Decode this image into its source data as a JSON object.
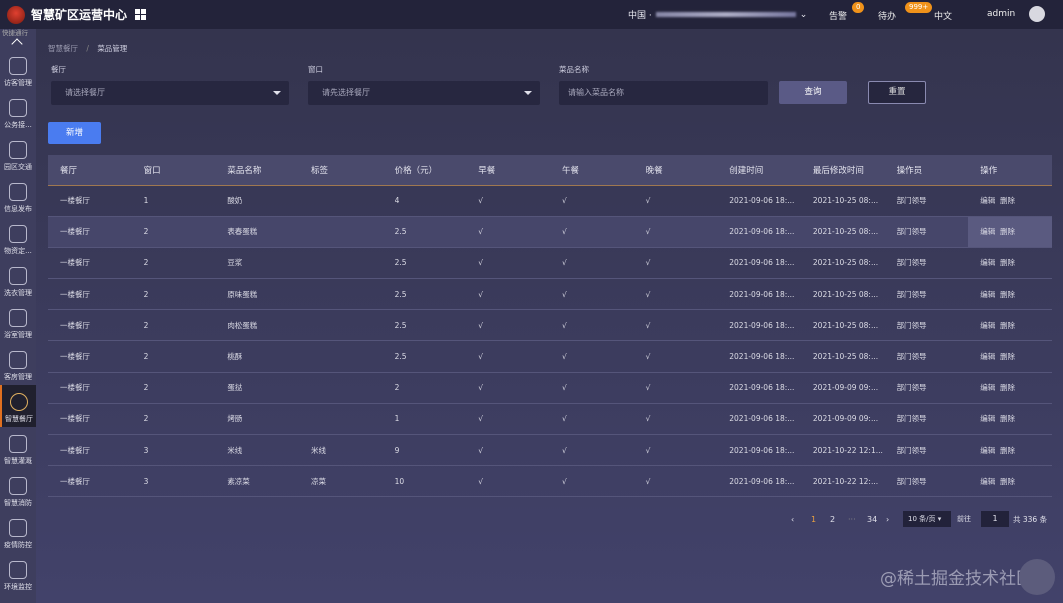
{
  "header": {
    "title": "智慧矿区运营中心",
    "location_prefix": "中国 ·",
    "alarm_label": "告警",
    "alarm_count": "0",
    "todo_label": "待办",
    "todo_count": "999+",
    "language": "中文",
    "user": "admin"
  },
  "sidebar": {
    "top_label": "快捷通行",
    "items": [
      {
        "label": "访客管理",
        "icon": "visitor-icon"
      },
      {
        "label": "公务接...",
        "icon": "handshake-icon"
      },
      {
        "label": "园区交通",
        "icon": "car-icon"
      },
      {
        "label": "信息发布",
        "icon": "paper-plane-icon"
      },
      {
        "label": "物资定...",
        "icon": "layers-icon"
      },
      {
        "label": "洗衣管理",
        "icon": "washing-machine-icon"
      },
      {
        "label": "浴室管理",
        "icon": "bathtub-icon"
      },
      {
        "label": "客房管理",
        "icon": "building-icon"
      },
      {
        "label": "智慧餐厅",
        "icon": "cutlery-icon",
        "active": true
      },
      {
        "label": "智慧灌溉",
        "icon": "faucet-icon"
      },
      {
        "label": "智慧消防",
        "icon": "hydrant-icon"
      },
      {
        "label": "疫情防控",
        "icon": "report-icon"
      },
      {
        "label": "环境监控",
        "icon": "plant-icon"
      }
    ]
  },
  "breadcrumb": [
    "智慧餐厅",
    "菜品管理"
  ],
  "filters": {
    "restaurant_label": "餐厅",
    "restaurant_placeholder": "请选择餐厅",
    "window_label": "窗口",
    "window_placeholder": "请先选择餐厅",
    "dish_label": "菜品名称",
    "dish_placeholder": "请输入菜品名称",
    "query": "查询",
    "reset": "重置"
  },
  "add_button": "新增",
  "table": {
    "columns": [
      "餐厅",
      "窗口",
      "菜品名称",
      "标签",
      "价格（元）",
      "早餐",
      "午餐",
      "晚餐",
      "创建时间",
      "最后修改时间",
      "操作员",
      "操作"
    ],
    "edit": "编辑",
    "delete": "删除",
    "rows": [
      [
        "一楼餐厅",
        "1",
        "酸奶",
        "",
        "4",
        "√",
        "√",
        "√",
        "2021-09-06 18:...",
        "2021-10-25 08:...",
        "部门领导"
      ],
      [
        "一楼餐厅",
        "2",
        "表春蛋糕",
        "",
        "2.5",
        "√",
        "√",
        "√",
        "2021-09-06 18:...",
        "2021-10-25 08:...",
        "部门领导"
      ],
      [
        "一楼餐厅",
        "2",
        "豆浆",
        "",
        "2.5",
        "√",
        "√",
        "√",
        "2021-09-06 18:...",
        "2021-10-25 08:...",
        "部门领导"
      ],
      [
        "一楼餐厅",
        "2",
        "原味蛋糕",
        "",
        "2.5",
        "√",
        "√",
        "√",
        "2021-09-06 18:...",
        "2021-10-25 08:...",
        "部门领导"
      ],
      [
        "一楼餐厅",
        "2",
        "肉松蛋糕",
        "",
        "2.5",
        "√",
        "√",
        "√",
        "2021-09-06 18:...",
        "2021-10-25 08:...",
        "部门领导"
      ],
      [
        "一楼餐厅",
        "2",
        "桃酥",
        "",
        "2.5",
        "√",
        "√",
        "√",
        "2021-09-06 18:...",
        "2021-10-25 08:...",
        "部门领导"
      ],
      [
        "一楼餐厅",
        "2",
        "蛋挞",
        "",
        "2",
        "√",
        "√",
        "√",
        "2021-09-06 18:...",
        "2021-09-09 09:...",
        "部门领导"
      ],
      [
        "一楼餐厅",
        "2",
        "烤肠",
        "",
        "1",
        "√",
        "√",
        "√",
        "2021-09-06 18:...",
        "2021-09-09 09:...",
        "部门领导"
      ],
      [
        "一楼餐厅",
        "3",
        "米线",
        "米线",
        "9",
        "√",
        "√",
        "√",
        "2021-09-06 18:...",
        "2021-10-22 12:1...",
        "部门领导"
      ],
      [
        "一楼餐厅",
        "3",
        "素凉菜",
        "凉菜",
        "10",
        "√",
        "√",
        "√",
        "2021-09-06 18:...",
        "2021-10-22 12:...",
        "部门领导"
      ]
    ]
  },
  "pagination": {
    "prev": "‹",
    "pages": [
      "1",
      "2",
      "···",
      "34"
    ],
    "current": "1",
    "next": "›",
    "page_size": "10 条/页",
    "goto_label": "前往",
    "goto_value": "1",
    "total": "共 336 条"
  },
  "watermark": "@稀土掘金技术社区",
  "colors": {
    "accent": "#4a7cf0",
    "active_page": "#e8a040",
    "badge": "#f0921a"
  }
}
